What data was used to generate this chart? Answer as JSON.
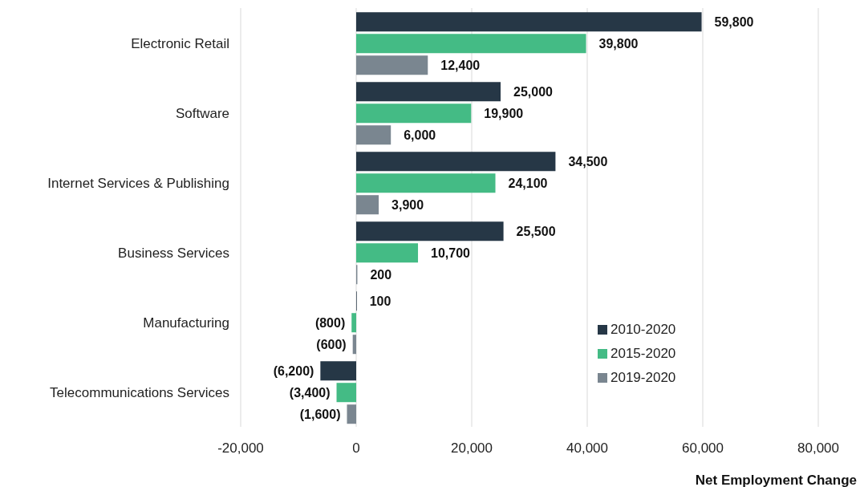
{
  "chart_data": {
    "type": "bar",
    "orientation": "horizontal",
    "xlabel": "Net Employment Change",
    "categories": [
      "Electronic Retail",
      "Software",
      "Internet Services & Publishing",
      "Business Services",
      "Manufacturing",
      "Telecommunications Services"
    ],
    "series": [
      {
        "name": "2010-2020",
        "color": "#263746",
        "values": [
          59800,
          25000,
          34500,
          25500,
          100,
          -6200
        ],
        "value_labels": [
          "59,800",
          "25,000",
          "34,500",
          "25,500",
          "100",
          "(6,200)"
        ]
      },
      {
        "name": "2015-2020",
        "color": "#44bb85",
        "values": [
          39800,
          19900,
          24100,
          10700,
          -800,
          -3400
        ],
        "value_labels": [
          "39,800",
          "19,900",
          "24,100",
          "10,700",
          "(800)",
          "(3,400)"
        ]
      },
      {
        "name": "2019-2020",
        "color": "#7a8690",
        "values": [
          12400,
          6000,
          3900,
          200,
          -600,
          -1600
        ],
        "value_labels": [
          "12,400",
          "6,000",
          "3,900",
          "200",
          "(600)",
          "(1,600)"
        ]
      }
    ],
    "xlim": [
      -20000,
      80000
    ],
    "xticks": [
      {
        "value": -20000,
        "label": "-20,000"
      },
      0,
      {
        "value": 20000,
        "label": "20,000"
      },
      {
        "value": 40000,
        "label": "40,000"
      },
      {
        "value": 60000,
        "label": "60,000"
      },
      {
        "value": 80000,
        "label": "80,000"
      }
    ],
    "grid": "x",
    "legend": "bottom right"
  }
}
